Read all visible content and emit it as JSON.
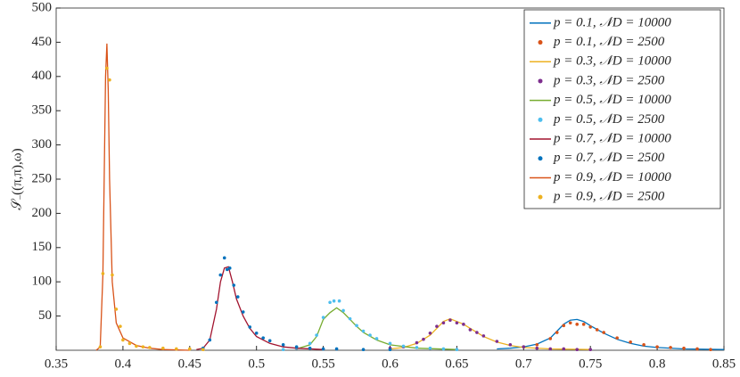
{
  "chart_data": {
    "type": "line",
    "y_label": "𝒮₋((π,π),ω)",
    "xlim": [
      0.35,
      0.85
    ],
    "xticks": [
      0.35,
      0.4,
      0.45,
      0.5,
      0.55,
      0.6,
      0.65,
      0.7,
      0.75,
      0.8,
      0.85
    ],
    "ylim": [
      0,
      500
    ],
    "yticks": [
      50,
      100,
      150,
      200,
      250,
      300,
      350,
      400,
      450,
      500
    ],
    "legend": "northeast",
    "series": [
      {
        "name": "p = 0.1, 𝒩D = 10000",
        "style": "line",
        "color": "#0072BD",
        "x": [
          0.68,
          0.69,
          0.7,
          0.71,
          0.72,
          0.725,
          0.73,
          0.735,
          0.74,
          0.745,
          0.75,
          0.76,
          0.77,
          0.78,
          0.79,
          0.8,
          0.82,
          0.85
        ],
        "values": [
          2,
          3,
          5,
          9,
          18,
          28,
          38,
          44,
          45,
          42,
          36,
          25,
          16,
          10,
          6,
          4,
          2,
          1
        ]
      },
      {
        "name": "p = 0.1, 𝒩D = 2500",
        "style": "points",
        "color": "#D95319",
        "x": [
          0.7,
          0.71,
          0.72,
          0.725,
          0.73,
          0.735,
          0.74,
          0.745,
          0.75,
          0.755,
          0.76,
          0.77,
          0.78,
          0.79,
          0.8,
          0.81,
          0.82,
          0.83,
          0.84
        ],
        "values": [
          5,
          8,
          17,
          26,
          36,
          40,
          38,
          38,
          34,
          30,
          26,
          18,
          12,
          8,
          5,
          4,
          3,
          2,
          1
        ]
      },
      {
        "name": "p = 0.3, 𝒩D = 10000",
        "style": "line",
        "color": "#EDB120",
        "x": [
          0.6,
          0.61,
          0.62,
          0.63,
          0.635,
          0.64,
          0.645,
          0.65,
          0.655,
          0.66,
          0.67,
          0.68,
          0.69,
          0.7,
          0.72,
          0.75
        ],
        "values": [
          2,
          4,
          10,
          22,
          32,
          42,
          46,
          42,
          38,
          32,
          20,
          12,
          7,
          4,
          2,
          1
        ]
      },
      {
        "name": "p = 0.3, 𝒩D = 2500",
        "style": "points",
        "color": "#7E2F8E",
        "x": [
          0.6,
          0.61,
          0.62,
          0.625,
          0.63,
          0.635,
          0.64,
          0.645,
          0.65,
          0.655,
          0.66,
          0.665,
          0.67,
          0.68,
          0.69,
          0.7,
          0.71,
          0.72,
          0.73,
          0.74,
          0.75
        ],
        "values": [
          3,
          5,
          11,
          16,
          25,
          35,
          40,
          44,
          40,
          38,
          30,
          26,
          21,
          13,
          8,
          5,
          3,
          2,
          2,
          1,
          1
        ]
      },
      {
        "name": "p = 0.5, 𝒩D = 10000",
        "style": "line",
        "color": "#77AC30",
        "x": [
          0.53,
          0.54,
          0.545,
          0.55,
          0.555,
          0.56,
          0.565,
          0.57,
          0.575,
          0.58,
          0.59,
          0.6,
          0.62,
          0.65
        ],
        "values": [
          2,
          8,
          20,
          45,
          55,
          62,
          55,
          45,
          35,
          26,
          15,
          8,
          3,
          1
        ]
      },
      {
        "name": "p = 0.5, 𝒩D = 2500",
        "style": "points",
        "color": "#4DBEEE",
        "x": [
          0.52,
          0.53,
          0.54,
          0.545,
          0.55,
          0.555,
          0.558,
          0.562,
          0.565,
          0.57,
          0.575,
          0.58,
          0.585,
          0.59,
          0.6,
          0.61,
          0.62,
          0.63,
          0.64,
          0.65
        ],
        "values": [
          1,
          3,
          10,
          22,
          48,
          70,
          72,
          72,
          58,
          46,
          36,
          28,
          22,
          17,
          10,
          6,
          4,
          3,
          2,
          1
        ]
      },
      {
        "name": "p = 0.7, 𝒩D = 10000",
        "style": "line",
        "color": "#A2142F",
        "x": [
          0.455,
          0.46,
          0.465,
          0.47,
          0.473,
          0.476,
          0.479,
          0.482,
          0.485,
          0.49,
          0.495,
          0.5,
          0.51,
          0.52,
          0.53,
          0.55
        ],
        "values": [
          1,
          3,
          15,
          60,
          100,
          120,
          122,
          100,
          75,
          50,
          32,
          20,
          10,
          5,
          3,
          1
        ]
      },
      {
        "name": "p = 0.7, 𝒩D = 2500",
        "style": "points",
        "color": "#0072BD",
        "x": [
          0.46,
          0.465,
          0.47,
          0.473,
          0.476,
          0.478,
          0.48,
          0.483,
          0.486,
          0.49,
          0.495,
          0.5,
          0.505,
          0.51,
          0.52,
          0.53,
          0.54,
          0.55,
          0.56,
          0.58,
          0.6
        ],
        "values": [
          3,
          15,
          70,
          110,
          135,
          118,
          120,
          95,
          78,
          56,
          34,
          25,
          18,
          14,
          8,
          5,
          3,
          2,
          2,
          1,
          1
        ]
      },
      {
        "name": "p = 0.9, 𝒩D = 10000",
        "style": "line",
        "color": "#D95319",
        "x": [
          0.38,
          0.383,
          0.385,
          0.387,
          0.388,
          0.389,
          0.39,
          0.392,
          0.395,
          0.4,
          0.41,
          0.42,
          0.43,
          0.45
        ],
        "values": [
          0,
          5,
          110,
          400,
          448,
          380,
          250,
          100,
          40,
          18,
          7,
          3,
          1,
          0
        ]
      },
      {
        "name": "p = 0.9, 𝒩D = 2500",
        "style": "points",
        "color": "#EDB120",
        "x": [
          0.383,
          0.385,
          0.388,
          0.39,
          0.392,
          0.395,
          0.398,
          0.4,
          0.405,
          0.41,
          0.415,
          0.42,
          0.43,
          0.44,
          0.45,
          0.46
        ],
        "values": [
          5,
          112,
          412,
          395,
          110,
          60,
          35,
          15,
          10,
          6,
          5,
          4,
          3,
          2,
          2,
          1
        ]
      }
    ]
  }
}
